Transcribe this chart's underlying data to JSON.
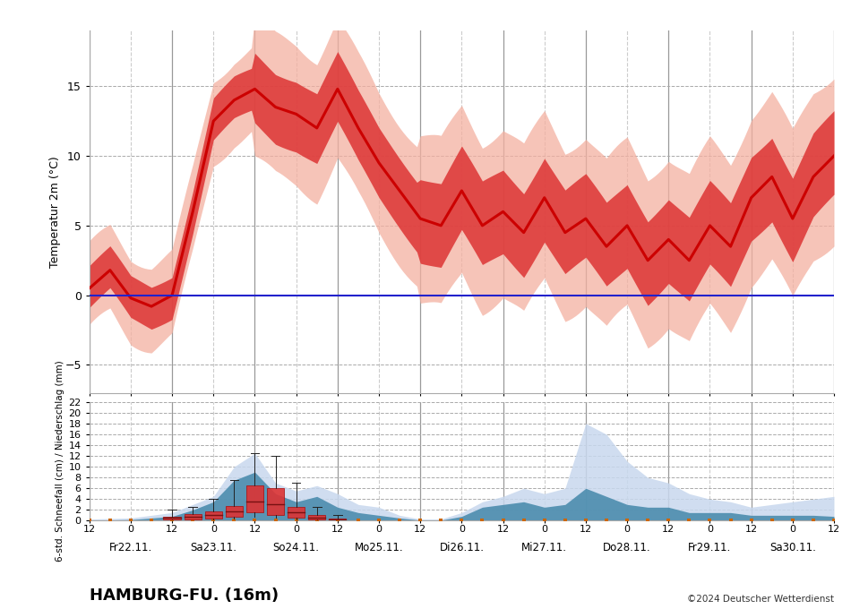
{
  "title": "HAMBURG-FU. (16m)",
  "copyright": "©2024 Deutscher Wetterdienst",
  "ylabel_top": "Temperatur 2m (°C)",
  "ylabel_bottom": "6-std. Schneefall (cm) / Niederschlag (mm)",
  "days": [
    "Fr22.11.",
    "Sa23.11.",
    "So24.11.",
    "Mo25.11.",
    "Di26.11.",
    "Mi27.11.",
    "Do28.11.",
    "Fr29.11.",
    "Sa30.11."
  ],
  "tick_labels": [
    "12",
    "0",
    "12",
    "0",
    "12",
    "0",
    "12",
    "0",
    "12",
    "0",
    "12",
    "0",
    "12",
    "0",
    "12",
    "0",
    "12",
    "0"
  ],
  "temp_ylim": [
    -7,
    19
  ],
  "precip_ylim": [
    0,
    22
  ],
  "bg_color": "#ffffff",
  "plot_bg": "#ffffff",
  "temp_line_color": "#cc0000",
  "temp_band1_color": "#dd3333",
  "temp_band2_color": "#f4b0a0",
  "zero_line_color": "#2222cc",
  "precip_outer_color": "#c8d8ee",
  "precip_inner_color": "#4488aa",
  "snow_box_color": "#dd3333",
  "snow_box_edge": "#aa1111",
  "orange_marker_color": "#cc6600",
  "vline_solid_color": "#999999",
  "vline_dash_color": "#cccccc",
  "grid_dash_color": "#aaaaaa"
}
